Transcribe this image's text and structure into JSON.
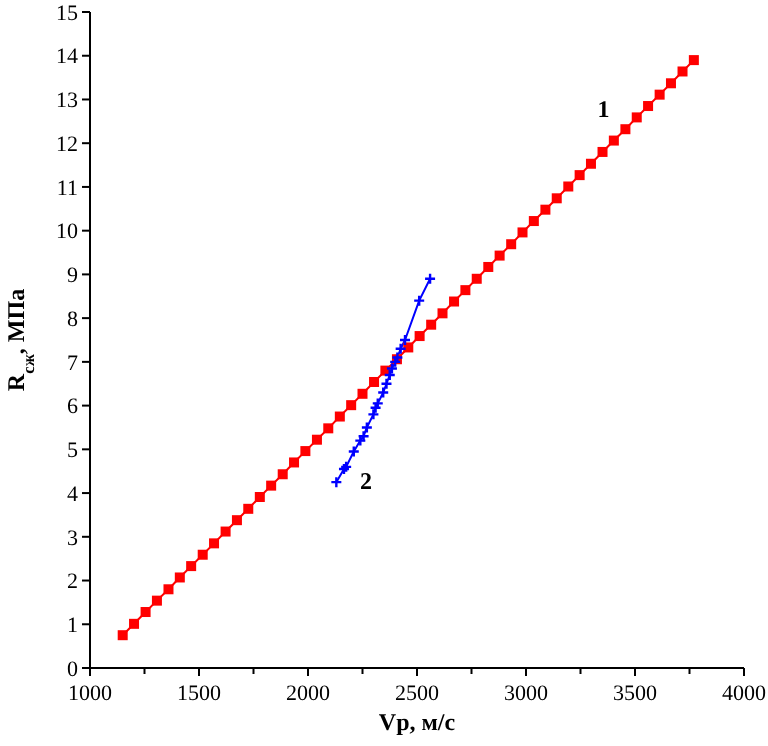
{
  "chart_data": {
    "type": "line",
    "xlabel": "Vp, м/с",
    "ylabel": "R$_{сж}$, МПа",
    "xlim": [
      1000,
      4000
    ],
    "xticks": [
      1000,
      1500,
      2000,
      2500,
      3000,
      3500,
      4000
    ],
    "ylim": [
      0,
      15
    ],
    "yticks": [
      0,
      1,
      2,
      3,
      4,
      5,
      6,
      7,
      8,
      9,
      10,
      11,
      12,
      13,
      14,
      15
    ],
    "grid": false,
    "legend": false,
    "series": [
      {
        "name": "1",
        "color": "#ff0000",
        "marker": "square",
        "x": [
          1150,
          1202,
          1255,
          1307,
          1360,
          1412,
          1464,
          1517,
          1569,
          1622,
          1674,
          1726,
          1779,
          1831,
          1884,
          1936,
          1988,
          2041,
          2093,
          2146,
          2198,
          2250,
          2303,
          2355,
          2408,
          2460,
          2512,
          2565,
          2617,
          2670,
          2722,
          2774,
          2827,
          2879,
          2932,
          2984,
          3036,
          3089,
          3141,
          3194,
          3246,
          3298,
          3351,
          3403,
          3456,
          3508,
          3560,
          3613,
          3665,
          3718,
          3770
        ],
        "values": [
          0.75,
          1.01,
          1.28,
          1.54,
          1.8,
          2.07,
          2.33,
          2.59,
          2.85,
          3.12,
          3.38,
          3.64,
          3.91,
          4.17,
          4.43,
          4.7,
          4.96,
          5.22,
          5.48,
          5.75,
          6.01,
          6.27,
          6.54,
          6.8,
          7.06,
          7.33,
          7.59,
          7.85,
          8.11,
          8.38,
          8.64,
          8.9,
          9.17,
          9.43,
          9.69,
          9.96,
          10.22,
          10.48,
          10.74,
          11.01,
          11.27,
          11.53,
          11.8,
          12.06,
          12.32,
          12.59,
          12.85,
          13.11,
          13.37,
          13.64,
          13.9
        ]
      },
      {
        "name": "2",
        "color": "#0000ff",
        "marker": "cross",
        "x": [
          2130,
          2165,
          2175,
          2210,
          2240,
          2255,
          2270,
          2300,
          2310,
          2320,
          2345,
          2360,
          2375,
          2385,
          2400,
          2410,
          2425,
          2445,
          2510,
          2560
        ],
        "values": [
          4.25,
          4.55,
          4.6,
          4.95,
          5.2,
          5.3,
          5.5,
          5.8,
          5.95,
          6.05,
          6.3,
          6.5,
          6.7,
          6.85,
          7.0,
          7.1,
          7.3,
          7.5,
          8.4,
          8.9
        ]
      }
    ]
  }
}
